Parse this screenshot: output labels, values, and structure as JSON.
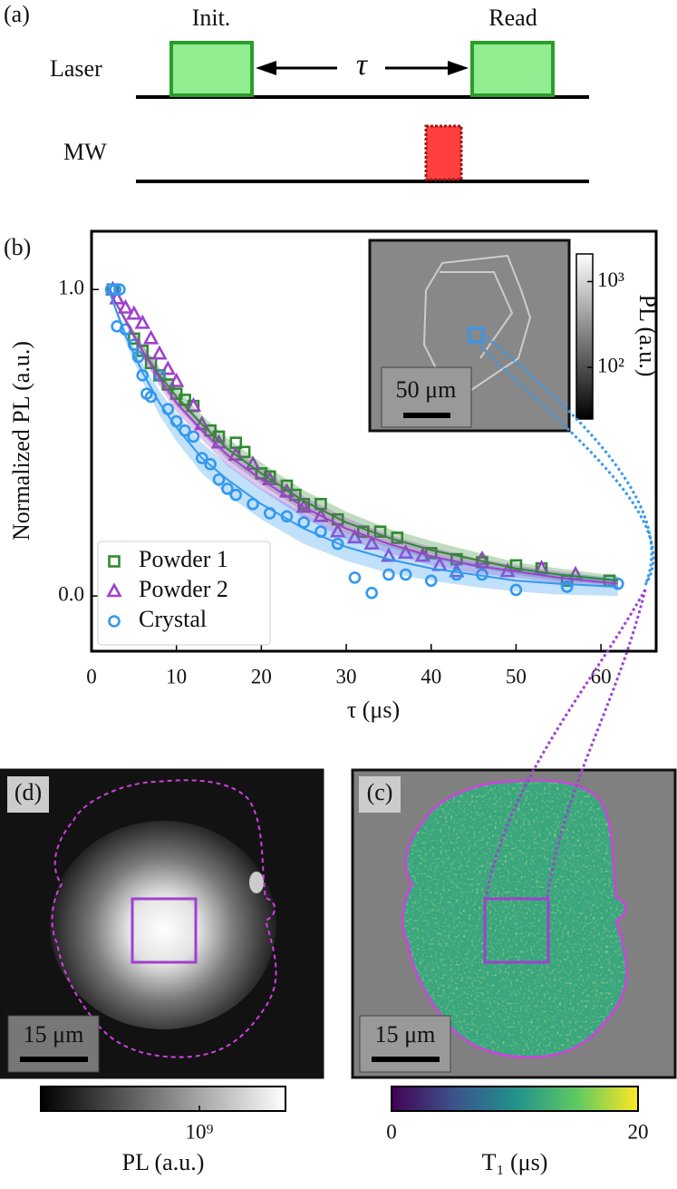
{
  "panel_a": {
    "label": "(a)",
    "channels": [
      "Laser",
      "MW"
    ],
    "pulses": [
      "Init.",
      "Read"
    ],
    "delay": "τ"
  },
  "chart_data": {
    "type": "scatter",
    "panel_label": "(b)",
    "xlabel": "τ (μs)",
    "ylabel": "Normalized PL (a.u.)",
    "xlim": [
      0,
      66.5
    ],
    "ylim": [
      -0.18,
      1.19
    ],
    "xticks": [
      0,
      10,
      20,
      30,
      40,
      50,
      60
    ],
    "yticks": [
      {
        "value": 0,
        "label": "0.0"
      },
      {
        "value": 1,
        "label": "1.0"
      }
    ],
    "legend": "lower left",
    "fit_x": [
      2,
      4,
      6,
      8,
      10,
      13,
      16,
      20,
      25,
      30,
      35,
      40,
      45,
      50,
      55,
      62
    ],
    "series": [
      {
        "name": "Powder 1",
        "color": "#2e8b2e",
        "marker": "square",
        "x": [
          2.5,
          5,
          6,
          7,
          8,
          9,
          10,
          11,
          12,
          14,
          15,
          17,
          18,
          20,
          21,
          23,
          24,
          25,
          27,
          29,
          32,
          34,
          36,
          40,
          43,
          46,
          50,
          53,
          56,
          61
        ],
        "values": [
          1.0,
          0.84,
          0.8,
          0.76,
          0.72,
          0.69,
          0.66,
          0.64,
          0.62,
          0.54,
          0.52,
          0.5,
          0.47,
          0.4,
          0.39,
          0.36,
          0.33,
          0.3,
          0.3,
          0.25,
          0.21,
          0.21,
          0.19,
          0.14,
          0.12,
          0.11,
          0.1,
          0.09,
          0.05,
          0.05
        ],
        "fit": [
          1.0,
          0.9,
          0.8,
          0.72,
          0.65,
          0.56,
          0.48,
          0.4,
          0.31,
          0.24,
          0.19,
          0.15,
          0.12,
          0.09,
          0.07,
          0.05
        ],
        "fit_lower": [
          0.995,
          0.89,
          0.78,
          0.695,
          0.62,
          0.53,
          0.445,
          0.365,
          0.275,
          0.205,
          0.16,
          0.12,
          0.095,
          0.07,
          0.05,
          0.035
        ],
        "fit_upper": [
          1.0,
          0.91,
          0.82,
          0.745,
          0.68,
          0.59,
          0.515,
          0.435,
          0.345,
          0.275,
          0.22,
          0.18,
          0.145,
          0.11,
          0.09,
          0.065
        ]
      },
      {
        "name": "Powder 2",
        "color": "#a040d0",
        "marker": "triangle",
        "x": [
          2.5,
          3,
          4,
          5,
          6,
          7,
          8,
          9,
          10,
          12,
          13,
          15,
          17,
          19,
          21,
          23,
          25,
          27,
          29,
          31,
          33,
          35,
          37,
          39,
          41,
          43,
          46,
          49,
          53,
          57
        ],
        "values": [
          1.0,
          0.97,
          0.94,
          0.92,
          0.89,
          0.84,
          0.79,
          0.74,
          0.7,
          0.62,
          0.56,
          0.5,
          0.46,
          0.43,
          0.38,
          0.34,
          0.29,
          0.26,
          0.21,
          0.19,
          0.17,
          0.13,
          0.14,
          0.13,
          0.1,
          0.08,
          0.12,
          0.08,
          0.09,
          0.07
        ],
        "fit": [
          1.0,
          0.9,
          0.8,
          0.71,
          0.63,
          0.54,
          0.46,
          0.38,
          0.29,
          0.22,
          0.17,
          0.13,
          0.1,
          0.08,
          0.06,
          0.04
        ],
        "fit_lower": [
          0.995,
          0.89,
          0.78,
          0.685,
          0.6,
          0.51,
          0.425,
          0.345,
          0.255,
          0.185,
          0.14,
          0.1,
          0.075,
          0.06,
          0.04,
          0.025
        ],
        "fit_upper": [
          1.0,
          0.91,
          0.82,
          0.735,
          0.66,
          0.57,
          0.495,
          0.415,
          0.325,
          0.255,
          0.2,
          0.16,
          0.125,
          0.1,
          0.08,
          0.055
        ]
      },
      {
        "name": "Crystal",
        "color": "#3399ee",
        "marker": "circle",
        "x": [
          2.3,
          2.8,
          3.3,
          3,
          4,
          5,
          5.5,
          6,
          6.5,
          7,
          8,
          9,
          10,
          11,
          12,
          13,
          14,
          15,
          16,
          17,
          19,
          21,
          23,
          25,
          27,
          29,
          31,
          33,
          35,
          37,
          40,
          43,
          46,
          50,
          56,
          62
        ],
        "values": [
          1.0,
          1.0,
          1.0,
          0.88,
          0.87,
          0.82,
          0.78,
          0.72,
          0.66,
          0.65,
          0.72,
          0.61,
          0.57,
          0.54,
          0.52,
          0.45,
          0.43,
          0.38,
          0.35,
          0.33,
          0.3,
          0.27,
          0.26,
          0.24,
          0.21,
          0.17,
          0.06,
          0.01,
          0.07,
          0.07,
          0.05,
          0.07,
          0.07,
          0.02,
          0.03,
          0.04
        ],
        "fit": [
          1.0,
          0.85,
          0.73,
          0.63,
          0.55,
          0.45,
          0.38,
          0.3,
          0.22,
          0.16,
          0.12,
          0.09,
          0.07,
          0.05,
          0.04,
          0.03
        ],
        "fit_lower": [
          0.995,
          0.83,
          0.7,
          0.59,
          0.505,
          0.4,
          0.33,
          0.25,
          0.17,
          0.115,
          0.075,
          0.05,
          0.03,
          0.015,
          0.005,
          0.0
        ],
        "fit_upper": [
          1.0,
          0.87,
          0.76,
          0.67,
          0.595,
          0.5,
          0.43,
          0.35,
          0.27,
          0.205,
          0.165,
          0.13,
          0.11,
          0.085,
          0.075,
          0.06
        ]
      }
    ],
    "inset": {
      "scale_bar": "50 μm",
      "colorbar_label": "PL (a.u.)",
      "log": true,
      "colorbar_lim": [
        25,
        2100
      ],
      "colorbar_ticks": [
        {
          "value": 100,
          "label": "10²"
        },
        {
          "value": 1000,
          "label": "10³"
        }
      ]
    }
  },
  "panel_d": {
    "label": "(d)",
    "scale_bar": "15 μm",
    "colorbar_label": "PL (a.u.)",
    "log": true,
    "colorbar_lim": [
      68000000,
      4300000000
    ],
    "colorbar_ticks": [
      {
        "value": 1000000000,
        "label": "10⁹"
      }
    ]
  },
  "panel_c": {
    "label": "(c)",
    "scale_bar": "15 μm",
    "colorbar_label": "T₁ (μs)",
    "colorbar_lim": [
      0,
      20
    ],
    "colorbar_ticks": [
      0,
      20
    ]
  }
}
